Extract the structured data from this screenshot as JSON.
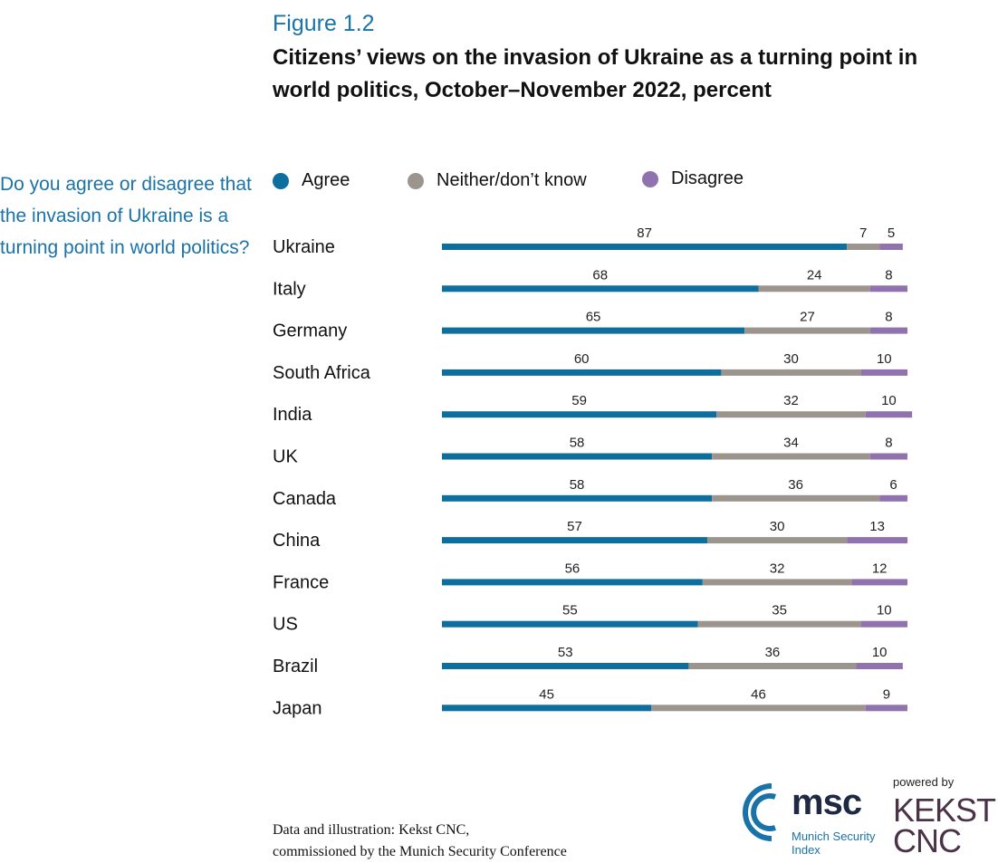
{
  "figure": {
    "label": "Figure 1.2",
    "title": "Citizens’ views on the invasion of Ukraine as a turning point in world politics, October–November 2022, percent"
  },
  "question": "Do you agree or disagree that the invasion of Ukraine is a turning point in world politics?",
  "colors": {
    "agree": "#0e6e9e",
    "neither": "#9b958e",
    "disagree": "#8f72ae"
  },
  "chart_data": {
    "type": "bar",
    "orientation": "horizontal",
    "stacked": true,
    "title": "Citizens’ views on the invasion of Ukraine as a turning point in world politics, October–November 2022, percent",
    "xlabel": "",
    "ylabel": "",
    "xlim": [
      0,
      100
    ],
    "legend": [
      "Agree",
      "Neither/don’t know",
      "Disagree"
    ],
    "legend_position": "top",
    "categories": [
      "Ukraine",
      "Italy",
      "Germany",
      "South Africa",
      "India",
      "UK",
      "Canada",
      "China",
      "France",
      "US",
      "Brazil",
      "Japan"
    ],
    "series": [
      {
        "name": "Agree",
        "values": [
          87,
          68,
          65,
          60,
          59,
          58,
          58,
          57,
          56,
          55,
          53,
          45
        ]
      },
      {
        "name": "Neither/don’t know",
        "values": [
          7,
          24,
          27,
          30,
          32,
          34,
          36,
          30,
          32,
          35,
          36,
          46
        ]
      },
      {
        "name": "Disagree",
        "values": [
          5,
          8,
          8,
          10,
          10,
          8,
          6,
          13,
          12,
          10,
          10,
          9
        ]
      }
    ]
  },
  "source": {
    "line1": "Data and illustration: Kekst CNC,",
    "line2": "commissioned by the Munich Security Conference"
  },
  "logos": {
    "msc": "msc",
    "msc_line1": "Munich Security",
    "msc_line2": "Index",
    "powered_by": "powered by",
    "kekst_line1": "KEKST",
    "kekst_line2": "CNC"
  }
}
